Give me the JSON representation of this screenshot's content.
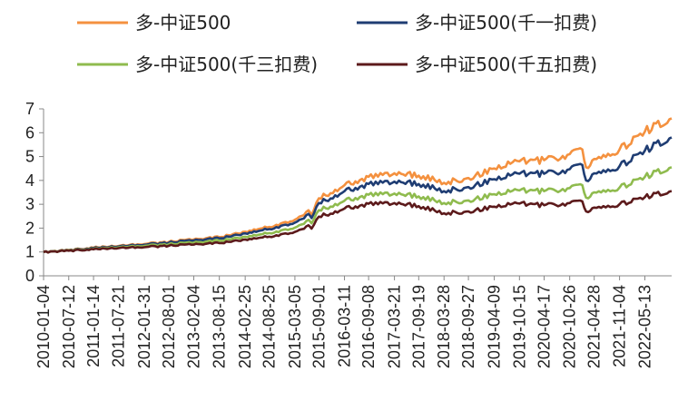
{
  "chart_data": {
    "type": "line",
    "title": "",
    "xlabel": "",
    "ylabel": "",
    "ylim": [
      0,
      7
    ],
    "yticks": [
      "0",
      "1",
      "2",
      "3",
      "4",
      "5",
      "6",
      "7"
    ],
    "legend_position": "top",
    "grid": false,
    "x_tick_labels": [
      "2010-01-04",
      "2010-07-12",
      "2011-01-14",
      "2011-07-21",
      "2012-01-31",
      "2012-08-01",
      "2013-02-04",
      "2013-08-15",
      "2014-02-25",
      "2014-08-25",
      "2015-03-05",
      "2015-09-01",
      "2016-03-11",
      "2016-09-08",
      "2017-03-21",
      "2017-09-19",
      "2018-03-28",
      "2018-09-27",
      "2019-04-09",
      "2019-10-15",
      "2020-04-17",
      "2020-10-26",
      "2021-04-28",
      "2021-11-04",
      "2022-05-13"
    ],
    "x": [
      "2010-01-04",
      "2010-07-12",
      "2011-01-14",
      "2011-07-21",
      "2012-01-31",
      "2012-08-01",
      "2013-02-04",
      "2013-08-15",
      "2014-02-25",
      "2014-08-25",
      "2015-03-05",
      "2015-06-15",
      "2015-07-08",
      "2015-09-01",
      "2016-03-11",
      "2016-09-08",
      "2017-03-21",
      "2017-09-19",
      "2018-03-28",
      "2018-09-27",
      "2019-04-09",
      "2019-10-15",
      "2020-04-17",
      "2020-10-26",
      "2021-01-29",
      "2021-02-26",
      "2021-04-28",
      "2021-11-04",
      "2022-05-13",
      "2022-11-30"
    ],
    "series": [
      {
        "name": "多-中证500",
        "color": "#f4913f",
        "values": [
          1.0,
          1.08,
          1.18,
          1.25,
          1.33,
          1.42,
          1.52,
          1.62,
          1.85,
          2.05,
          2.35,
          2.75,
          2.55,
          3.25,
          3.8,
          4.15,
          4.3,
          4.2,
          3.9,
          4.1,
          4.5,
          4.8,
          4.85,
          5.1,
          5.3,
          4.55,
          4.9,
          5.3,
          6.05,
          6.6
        ]
      },
      {
        "name": "多-中证500(千一扣费)",
        "color": "#1f3d73",
        "values": [
          1.0,
          1.07,
          1.16,
          1.23,
          1.3,
          1.39,
          1.48,
          1.57,
          1.78,
          1.96,
          2.23,
          2.6,
          2.42,
          3.05,
          3.55,
          3.85,
          3.95,
          3.85,
          3.55,
          3.72,
          4.05,
          4.28,
          4.28,
          4.47,
          4.65,
          4.0,
          4.3,
          4.6,
          5.25,
          5.8
        ]
      },
      {
        "name": "多-中证500(千三扣费)",
        "color": "#8fbb4e",
        "values": [
          1.0,
          1.06,
          1.13,
          1.19,
          1.25,
          1.32,
          1.39,
          1.47,
          1.64,
          1.79,
          2.02,
          2.35,
          2.2,
          2.75,
          3.15,
          3.4,
          3.45,
          3.33,
          3.05,
          3.16,
          3.42,
          3.58,
          3.55,
          3.68,
          3.8,
          3.28,
          3.5,
          3.7,
          4.15,
          4.55
        ]
      },
      {
        "name": "多-中证500(千五扣费)",
        "color": "#5c1a1b",
        "values": [
          1.0,
          1.05,
          1.11,
          1.16,
          1.2,
          1.26,
          1.31,
          1.37,
          1.52,
          1.64,
          1.84,
          2.12,
          1.98,
          2.48,
          2.82,
          3.02,
          3.05,
          2.92,
          2.62,
          2.7,
          2.9,
          3.03,
          2.96,
          3.05,
          3.12,
          2.7,
          2.86,
          3.0,
          3.3,
          3.55
        ]
      }
    ]
  }
}
